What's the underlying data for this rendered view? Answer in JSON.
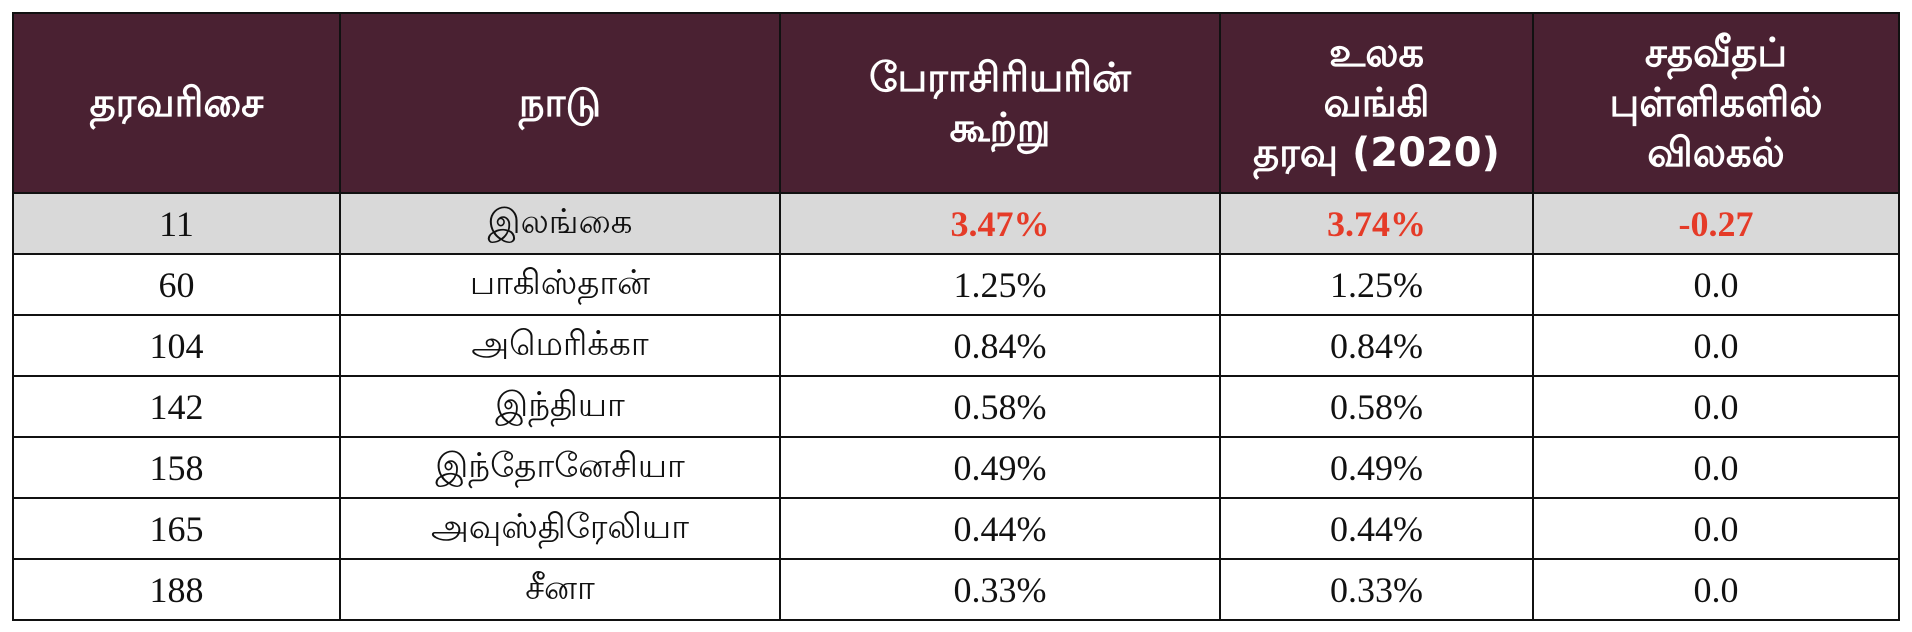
{
  "table": {
    "headers": [
      [
        "தரவரிசை"
      ],
      [
        "நாடு"
      ],
      [
        "பேராசிரியரின்",
        "கூற்று"
      ],
      [
        "உலக",
        "வங்கி",
        "தரவு (2020)"
      ],
      [
        "சதவீதப்",
        "புள்ளிகளில்",
        "விலகல்"
      ]
    ],
    "rows": [
      [
        "11",
        "இலங்கை",
        "3.47%",
        "3.74%",
        "-0.27"
      ],
      [
        "60",
        "பாகிஸ்தான்",
        "1.25%",
        "1.25%",
        "0.0"
      ],
      [
        "104",
        "அமெரிக்கா",
        "0.84%",
        "0.84%",
        "0.0"
      ],
      [
        "142",
        "இந்தியா",
        "0.58%",
        "0.58%",
        "0.0"
      ],
      [
        "158",
        "இந்தோனேசியா",
        "0.49%",
        "0.49%",
        "0.0"
      ],
      [
        "165",
        "அவுஸ்திரேலியா",
        "0.44%",
        "0.44%",
        "0.0"
      ],
      [
        "188",
        "சீனா",
        "0.33%",
        "0.33%",
        "0.0"
      ]
    ]
  }
}
